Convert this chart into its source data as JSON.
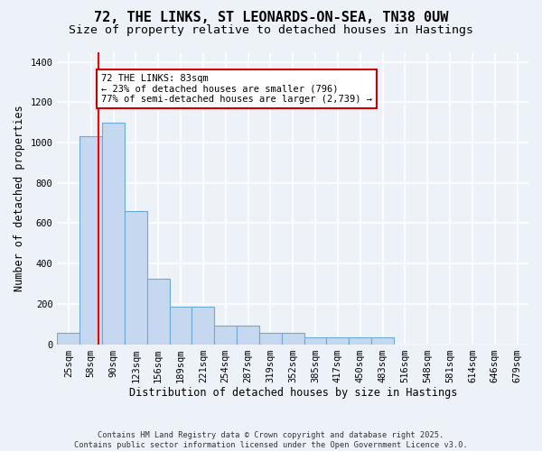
{
  "title1": "72, THE LINKS, ST LEONARDS-ON-SEA, TN38 0UW",
  "title2": "Size of property relative to detached houses in Hastings",
  "xlabel": "Distribution of detached houses by size in Hastings",
  "ylabel": "Number of detached properties",
  "bins": [
    "25sqm",
    "58sqm",
    "90sqm",
    "123sqm",
    "156sqm",
    "189sqm",
    "221sqm",
    "254sqm",
    "287sqm",
    "319sqm",
    "352sqm",
    "385sqm",
    "417sqm",
    "450sqm",
    "483sqm",
    "516sqm",
    "548sqm",
    "581sqm",
    "614sqm",
    "646sqm",
    "679sqm"
  ],
  "bar_values": [
    55,
    1030,
    1100,
    660,
    325,
    185,
    185,
    90,
    90,
    55,
    55,
    35,
    35,
    35,
    35,
    0,
    0,
    0,
    0,
    0,
    0
  ],
  "bar_color": "#c5d8f0",
  "bar_edge_color": "#6aaad4",
  "bg_color": "#edf2f9",
  "grid_color": "#ffffff",
  "red_line_x": 1.35,
  "annotation_text": "72 THE LINKS: 83sqm\n← 23% of detached houses are smaller (796)\n77% of semi-detached houses are larger (2,739) →",
  "annotation_box_color": "#ffffff",
  "annotation_box_edge": "#cc0000",
  "ylim": [
    0,
    1450
  ],
  "yticks": [
    0,
    200,
    400,
    600,
    800,
    1000,
    1200,
    1400
  ],
  "footer": "Contains HM Land Registry data © Crown copyright and database right 2025.\nContains public sector information licensed under the Open Government Licence v3.0.",
  "title1_fontsize": 11,
  "title2_fontsize": 9.5,
  "tick_fontsize": 7.5,
  "label_fontsize": 8.5
}
